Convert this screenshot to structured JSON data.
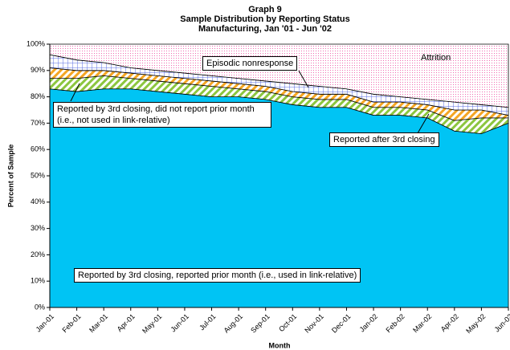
{
  "chart_data": {
    "type": "stacked-area",
    "title": "Graph 9",
    "subtitle": [
      "Sample Distribution by Reporting Status",
      "Manufacturing, Jan '01 - Jun '02"
    ],
    "x_label": "Month",
    "y_label": "Percent of Sample",
    "categories": [
      "Jan-01",
      "Feb-01",
      "Mar-01",
      "Apr-01",
      "May-01",
      "Jun-01",
      "Jul-01",
      "Aug-01",
      "Sep-01",
      "Oct-01",
      "Nov-01",
      "Dec-01",
      "Jan-02",
      "Feb-02",
      "Mar-02",
      "Apr-02",
      "May-02",
      "Jun-02"
    ],
    "ylim": [
      0,
      100
    ],
    "yticks": [
      {
        "value": 0,
        "label": "0%"
      },
      {
        "value": 10,
        "label": "10%"
      },
      {
        "value": 20,
        "label": "20%"
      },
      {
        "value": 30,
        "label": "30%"
      },
      {
        "value": 40,
        "label": "40%"
      },
      {
        "value": 50,
        "label": "50%"
      },
      {
        "value": 60,
        "label": "60%"
      },
      {
        "value": 70,
        "label": "70%"
      },
      {
        "value": 80,
        "label": "80%"
      },
      {
        "value": 90,
        "label": "90%"
      },
      {
        "value": 100,
        "label": "100%"
      }
    ],
    "series": [
      {
        "name": "Reported by 3rd closing, reported prior month (i.e., used in link-relative)",
        "color": "#00c4f4",
        "pattern": "solid",
        "values": [
          83,
          82,
          83,
          83,
          82,
          81,
          80,
          80,
          79,
          77,
          76,
          76,
          73,
          73,
          72,
          67,
          66,
          70
        ]
      },
      {
        "name": "Reported by 3rd closing, did not report prior month (i.e., not used in link-relative)",
        "color": "#8cc63f",
        "pattern": "hatch",
        "values": [
          4,
          5,
          5,
          4,
          4,
          4,
          4,
          3,
          3,
          3,
          3,
          3,
          3,
          3,
          3,
          4,
          6,
          2
        ]
      },
      {
        "name": "Reported after 3rd closing",
        "color": "#f5a623",
        "pattern": "hatch",
        "values": [
          4,
          3,
          2,
          2,
          2,
          2,
          2,
          2,
          2,
          2,
          2,
          2,
          2,
          2,
          2,
          4,
          3,
          1
        ]
      },
      {
        "name": "Episodic nonresponse",
        "color": "#5a6ee0",
        "pattern": "grid",
        "values": [
          5,
          4,
          3,
          2,
          2,
          2,
          2,
          2,
          2,
          3,
          3,
          2,
          3,
          2,
          2,
          3,
          2,
          3
        ]
      },
      {
        "name": "Attrition",
        "color": "#f06ab0",
        "pattern": "dots",
        "values": [
          4,
          6,
          7,
          9,
          10,
          11,
          12,
          13,
          14,
          15,
          16,
          17,
          19,
          20,
          21,
          22,
          23,
          24
        ]
      }
    ]
  }
}
